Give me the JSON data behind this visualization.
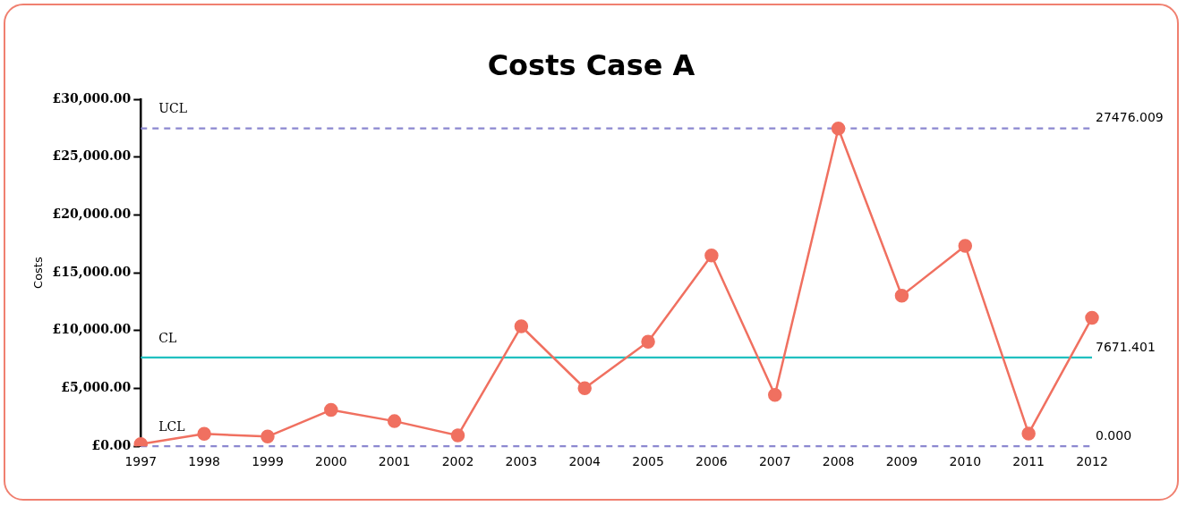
{
  "chart_data": {
    "type": "line",
    "title": "Costs Case A",
    "ylabel": "Costs",
    "categories": [
      "1997",
      "1998",
      "1999",
      "2000",
      "2001",
      "2002",
      "2003",
      "2004",
      "2005",
      "2006",
      "2007",
      "2008",
      "2009",
      "2010",
      "2011",
      "2012"
    ],
    "series": [
      {
        "color": "#f07060",
        "values": [
          190,
          1070,
          840,
          3140,
          2170,
          940,
          10370,
          5020,
          9040,
          16490,
          4440,
          27470,
          13020,
          17330,
          1100,
          11110
        ]
      }
    ],
    "ylim": [
      0,
      30000
    ],
    "yticks": [
      {
        "value": 0,
        "label": "£0.00"
      },
      {
        "value": 5000,
        "label": "£5,000.00"
      },
      {
        "value": 10000,
        "label": "£10,000.00"
      },
      {
        "value": 15000,
        "label": "£15,000.00"
      },
      {
        "value": 20000,
        "label": "£20,000.00"
      },
      {
        "value": 25000,
        "label": "£25,000.00"
      },
      {
        "value": 30000,
        "label": "£30,000.00"
      }
    ],
    "ref_lines": [
      {
        "axis": "y",
        "value": 27476.009,
        "label": "UCL",
        "color": "#8c88d0",
        "line_style": "dashed"
      },
      {
        "axis": "y",
        "value": 7671.401,
        "label": "CL",
        "color": "#20c0c0",
        "line_style": "solid"
      },
      {
        "axis": "y",
        "value": 0,
        "label": "LCL",
        "color": "#8c88d0",
        "line_style": "dashed"
      }
    ],
    "annotations": [
      {
        "text": "27476.009",
        "x": "2012",
        "y": 27476.009
      },
      {
        "text": "7671.401",
        "x": "2012",
        "y": 7671.401
      },
      {
        "text": "0.000",
        "x": "2012",
        "y": 0
      }
    ],
    "grid": false,
    "legend": false,
    "marker": "circle",
    "line_style": "solid"
  }
}
